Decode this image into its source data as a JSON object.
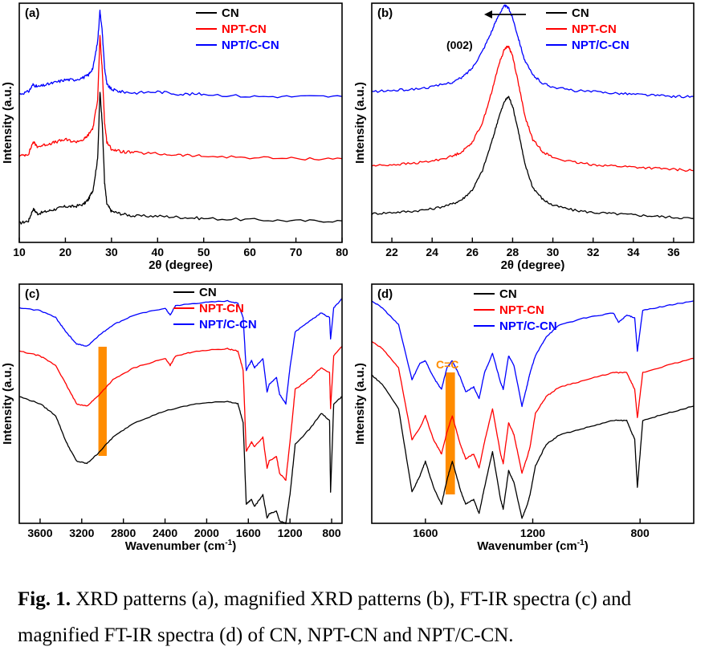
{
  "colors": {
    "CN": "#000000",
    "NPT-CN": "#ff0000",
    "NPT/C-CN": "#0000ff",
    "highlight": "#ff8c00"
  },
  "chart_data": [
    {
      "panel": "(a)",
      "type": "line",
      "xlabel": "2θ (degree)",
      "ylabel": "Intensity (a.u.)",
      "xlim": [
        10,
        80
      ],
      "ylim": [
        0,
        10
      ],
      "xticks": [
        "10",
        "20",
        "30",
        "40",
        "50",
        "60",
        "70",
        "80"
      ],
      "legend": [
        "CN",
        "NPT-CN",
        "NPT/C-CN"
      ],
      "series": [
        {
          "name": "CN",
          "x": [
            10,
            12,
            13,
            14,
            16,
            18,
            20,
            22,
            24,
            25,
            26,
            27,
            27.5,
            28,
            28.5,
            29,
            30,
            32,
            35,
            40,
            45,
            50,
            60,
            70,
            80
          ],
          "y": [
            0.8,
            0.9,
            1.4,
            1.2,
            1.3,
            1.4,
            1.5,
            1.5,
            1.6,
            1.8,
            2.2,
            3.5,
            6.3,
            5.0,
            2.5,
            1.6,
            1.3,
            1.2,
            1.1,
            1.1,
            1.05,
            1.0,
            0.95,
            0.9,
            0.9
          ]
        },
        {
          "name": "NPT-CN",
          "x": [
            10,
            12,
            13,
            14,
            16,
            18,
            20,
            22,
            24,
            25,
            26,
            27,
            27.5,
            28,
            28.5,
            29,
            30,
            32,
            35,
            40,
            45,
            50,
            60,
            70,
            80
          ],
          "y": [
            3.6,
            3.7,
            4.2,
            4.0,
            4.1,
            4.2,
            4.3,
            4.2,
            4.3,
            4.5,
            4.8,
            6.0,
            8.6,
            7.2,
            5.0,
            4.2,
            3.9,
            3.8,
            3.75,
            3.7,
            3.65,
            3.6,
            3.55,
            3.5,
            3.5
          ]
        },
        {
          "name": "NPT/C-CN",
          "x": [
            10,
            12,
            13,
            14,
            16,
            18,
            20,
            22,
            24,
            25,
            26,
            27,
            27.5,
            28,
            28.5,
            29,
            30,
            32,
            35,
            40,
            45,
            50,
            60,
            70,
            80
          ],
          "y": [
            6.2,
            6.3,
            6.6,
            6.5,
            6.6,
            6.7,
            6.8,
            6.8,
            6.9,
            7.0,
            7.3,
            8.4,
            9.7,
            8.8,
            7.3,
            6.6,
            6.4,
            6.3,
            6.25,
            6.3,
            6.2,
            6.2,
            6.1,
            6.1,
            6.1
          ]
        }
      ]
    },
    {
      "panel": "(b)",
      "type": "line",
      "xlabel": "2θ (degree)",
      "ylabel": "Intensity (a.u.)",
      "xlim": [
        21,
        37
      ],
      "ylim": [
        0,
        10
      ],
      "xticks": [
        "22",
        "24",
        "26",
        "28",
        "30",
        "32",
        "34",
        "36"
      ],
      "legend": [
        "CN",
        "NPT-CN",
        "NPT/C-CN"
      ],
      "annotation": "(002)",
      "series": [
        {
          "name": "CN",
          "x": [
            21,
            22,
            23,
            24,
            25,
            25.5,
            26,
            26.5,
            27,
            27.3,
            27.6,
            27.8,
            28.0,
            28.3,
            28.6,
            29,
            29.5,
            30,
            31,
            32,
            33,
            34,
            35,
            36,
            37
          ],
          "y": [
            1.2,
            1.25,
            1.3,
            1.4,
            1.6,
            1.8,
            2.2,
            3.0,
            4.3,
            5.2,
            5.9,
            6.1,
            5.7,
            4.6,
            3.3,
            2.3,
            1.8,
            1.55,
            1.35,
            1.25,
            1.2,
            1.15,
            1.1,
            1.05,
            1.0
          ]
        },
        {
          "name": "NPT-CN",
          "x": [
            21,
            22,
            23,
            24,
            25,
            25.5,
            26,
            26.5,
            27,
            27.3,
            27.6,
            27.8,
            28.0,
            28.3,
            28.6,
            29,
            29.5,
            30,
            31,
            32,
            33,
            34,
            35,
            36,
            37
          ],
          "y": [
            3.2,
            3.25,
            3.3,
            3.4,
            3.6,
            3.8,
            4.2,
            5.0,
            6.4,
            7.4,
            8.1,
            8.2,
            7.8,
            6.6,
            5.3,
            4.3,
            3.8,
            3.55,
            3.35,
            3.25,
            3.2,
            3.15,
            3.1,
            3.05,
            3.0
          ]
        },
        {
          "name": "NPT/C-CN",
          "x": [
            21,
            22,
            23,
            24,
            25,
            25.5,
            26,
            26.5,
            27,
            27.3,
            27.6,
            27.8,
            28.0,
            28.3,
            28.6,
            29,
            29.5,
            30,
            31,
            32,
            33,
            34,
            35,
            36,
            37
          ],
          "y": [
            6.3,
            6.35,
            6.4,
            6.5,
            6.7,
            6.9,
            7.3,
            8.0,
            8.9,
            9.5,
            9.9,
            9.8,
            9.4,
            8.5,
            7.6,
            7.0,
            6.65,
            6.5,
            6.35,
            6.3,
            6.25,
            6.2,
            6.15,
            6.1,
            6.1
          ]
        }
      ]
    },
    {
      "panel": "(c)",
      "type": "line",
      "xlabel": "Wavenumber (cm",
      "xlabel_sup": "-1",
      "xlabel_end": ")",
      "ylabel": "Intensity (a.u.)",
      "xlim": [
        3800,
        700
      ],
      "ylim": [
        0,
        10
      ],
      "xticks": [
        "3600",
        "3200",
        "2800",
        "2400",
        "2000",
        "1600",
        "1200",
        "800"
      ],
      "legend": [
        "CN",
        "NPT-CN",
        "NPT/C-CN"
      ],
      "highlight_range": [
        3040,
        2960
      ],
      "series": [
        {
          "name": "CN",
          "x": [
            3800,
            3600,
            3450,
            3350,
            3250,
            3150,
            3050,
            2900,
            2700,
            2400,
            2100,
            1800,
            1700,
            1650,
            1620,
            1570,
            1540,
            1460,
            1420,
            1400,
            1330,
            1300,
            1240,
            1200,
            1150,
            1000,
            900,
            820,
            810,
            780,
            700
          ],
          "y": [
            5.3,
            5.0,
            4.5,
            3.4,
            2.6,
            2.5,
            2.9,
            3.6,
            4.2,
            4.7,
            5.0,
            5.1,
            5.0,
            4.2,
            0.8,
            1.0,
            0.7,
            1.2,
            0.2,
            0.4,
            0.5,
            0.1,
            0.0,
            1.2,
            3.3,
            4.0,
            4.6,
            4.3,
            1.3,
            5.0,
            5.3
          ]
        },
        {
          "name": "NPT-CN",
          "x": [
            3800,
            3600,
            3450,
            3350,
            3250,
            3150,
            3050,
            2900,
            2700,
            2400,
            2350,
            2300,
            2100,
            1800,
            1700,
            1650,
            1620,
            1570,
            1540,
            1460,
            1420,
            1400,
            1330,
            1300,
            1240,
            1200,
            1150,
            1000,
            900,
            820,
            810,
            780,
            700
          ],
          "y": [
            7.2,
            7.0,
            6.6,
            5.8,
            5.0,
            4.9,
            5.3,
            6.0,
            6.5,
            6.9,
            6.6,
            7.0,
            7.2,
            7.3,
            7.2,
            6.4,
            3.0,
            3.4,
            3.2,
            3.6,
            2.3,
            2.6,
            2.8,
            2.1,
            1.8,
            3.4,
            5.6,
            6.1,
            6.5,
            6.3,
            4.8,
            7.0,
            7.4
          ]
        },
        {
          "name": "NPT/C-CN",
          "x": [
            3800,
            3600,
            3450,
            3350,
            3250,
            3150,
            3050,
            2900,
            2700,
            2400,
            2350,
            2300,
            2100,
            1800,
            1700,
            1650,
            1620,
            1570,
            1540,
            1460,
            1420,
            1400,
            1330,
            1300,
            1240,
            1200,
            1150,
            1000,
            900,
            820,
            810,
            780,
            700
          ],
          "y": [
            9.0,
            8.9,
            8.6,
            8.0,
            7.5,
            7.4,
            7.8,
            8.3,
            8.7,
            9.0,
            8.7,
            9.1,
            9.2,
            9.3,
            9.2,
            8.6,
            6.4,
            6.8,
            6.5,
            6.9,
            5.5,
            5.8,
            6.1,
            5.4,
            5.0,
            6.5,
            8.0,
            8.5,
            8.8,
            8.6,
            7.7,
            9.0,
            9.4
          ]
        }
      ]
    },
    {
      "panel": "(d)",
      "type": "line",
      "xlabel": "Wavenumber (cm",
      "xlabel_sup": "-1",
      "xlabel_end": ")",
      "ylabel": "Intensity (a.u.)",
      "xlim": [
        1800,
        600
      ],
      "ylim": [
        0,
        10
      ],
      "xticks": [
        "1600",
        "1200",
        "800"
      ],
      "legend": [
        "CN",
        "NPT-CN",
        "NPT/C-CN"
      ],
      "annotation": "C=C",
      "highlight_range": [
        1525,
        1490
      ],
      "series": [
        {
          "name": "CN",
          "x": [
            1800,
            1760,
            1700,
            1650,
            1620,
            1600,
            1570,
            1540,
            1520,
            1500,
            1470,
            1450,
            1420,
            1400,
            1380,
            1350,
            1320,
            1310,
            1290,
            1270,
            1240,
            1220,
            1210,
            1190,
            1150,
            1100,
            1000,
            900,
            850,
            820,
            810,
            790,
            700,
            600
          ],
          "y": [
            6.2,
            5.8,
            4.8,
            1.3,
            2.0,
            2.6,
            1.5,
            0.8,
            1.8,
            2.6,
            1.4,
            0.8,
            1.0,
            0.4,
            1.5,
            3.0,
            1.0,
            0.6,
            2.2,
            1.7,
            0.2,
            0.8,
            1.2,
            2.4,
            3.3,
            3.7,
            4.0,
            4.3,
            4.3,
            3.5,
            1.5,
            4.3,
            4.6,
            4.9
          ]
        },
        {
          "name": "NPT-CN",
          "x": [
            1800,
            1760,
            1700,
            1650,
            1620,
            1600,
            1570,
            1540,
            1520,
            1500,
            1470,
            1450,
            1420,
            1400,
            1380,
            1350,
            1320,
            1310,
            1290,
            1270,
            1240,
            1220,
            1210,
            1190,
            1150,
            1100,
            1000,
            900,
            850,
            820,
            810,
            790,
            700,
            600
          ],
          "y": [
            7.6,
            7.3,
            6.5,
            3.5,
            4.0,
            4.5,
            3.5,
            2.9,
            3.8,
            4.5,
            3.3,
            2.7,
            2.9,
            2.3,
            3.4,
            4.8,
            2.9,
            2.5,
            4.2,
            3.7,
            2.1,
            2.8,
            3.2,
            4.6,
            5.3,
            5.7,
            6.0,
            6.3,
            6.3,
            5.6,
            4.4,
            6.3,
            6.6,
            6.9
          ]
        },
        {
          "name": "NPT/C-CN",
          "x": [
            1800,
            1760,
            1700,
            1650,
            1620,
            1600,
            1570,
            1540,
            1520,
            1500,
            1470,
            1450,
            1420,
            1400,
            1380,
            1350,
            1320,
            1310,
            1290,
            1270,
            1240,
            1220,
            1210,
            1190,
            1150,
            1100,
            1000,
            900,
            880,
            850,
            820,
            810,
            790,
            700,
            600
          ],
          "y": [
            9.3,
            9.0,
            8.3,
            6.0,
            6.7,
            6.8,
            6.1,
            5.6,
            6.5,
            6.8,
            6.1,
            5.5,
            5.7,
            5.2,
            6.3,
            7.1,
            5.9,
            5.6,
            7.0,
            6.6,
            4.9,
            5.8,
            6.3,
            7.0,
            7.8,
            8.3,
            8.6,
            8.8,
            8.4,
            8.7,
            8.6,
            7.2,
            8.9,
            9.1,
            9.3
          ]
        }
      ]
    }
  ],
  "caption": {
    "label": "Fig. 1.",
    "text": " XRD patterns (a), magnified XRD patterns (b), FT-IR spectra (c) and magnified FT-IR spectra (d) of CN, NPT-CN and NPT/C-CN."
  }
}
